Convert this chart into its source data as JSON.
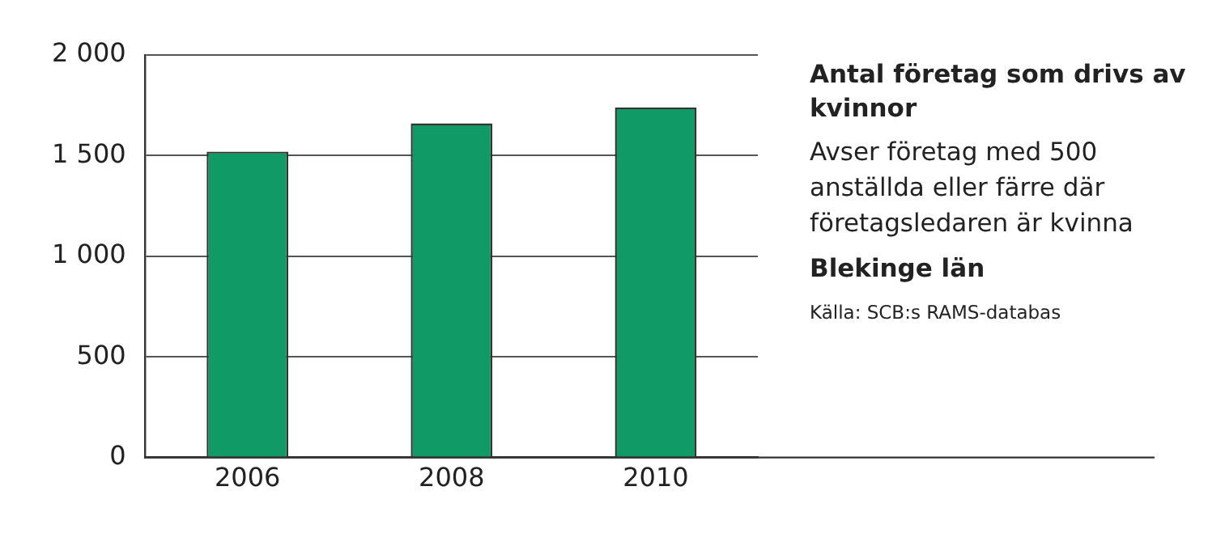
{
  "chart_data": {
    "type": "bar",
    "title": "Antal företag som drivs av kvinnor",
    "subtitle": "Avser företag med 500 anställda eller färre där företagsledaren är kvinna",
    "annotations": [
      "Blekinge län",
      "Källa: SCB:s RAMS-databas"
    ],
    "categories": [
      "2006",
      "2008",
      "2010"
    ],
    "values": [
      1520,
      1660,
      1740
    ],
    "color": "#109a65",
    "ylim": [
      0,
      2000
    ],
    "yticks": [
      {
        "value": 0,
        "label": "0"
      },
      {
        "value": 500,
        "label": "500"
      },
      {
        "value": 1000,
        "label": "1 000"
      },
      {
        "value": 1500,
        "label": "1 500"
      },
      {
        "value": 2000,
        "label": "2 000"
      }
    ],
    "grid": "y"
  }
}
